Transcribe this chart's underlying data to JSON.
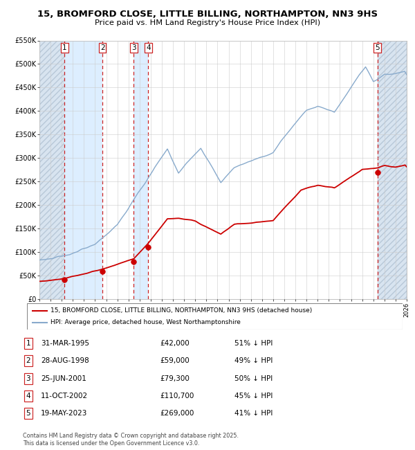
{
  "title_line1": "15, BROMFORD CLOSE, LITTLE BILLING, NORTHAMPTON, NN3 9HS",
  "title_line2": "Price paid vs. HM Land Registry's House Price Index (HPI)",
  "legend_red": "15, BROMFORD CLOSE, LITTLE BILLING, NORTHAMPTON, NN3 9HS (detached house)",
  "legend_blue": "HPI: Average price, detached house, West Northamptonshire",
  "footer": "Contains HM Land Registry data © Crown copyright and database right 2025.\nThis data is licensed under the Open Government Licence v3.0.",
  "sales": [
    {
      "num": 1,
      "date": "31-MAR-1995",
      "date_dec": 1995.25,
      "price": 42000,
      "pct": "51% ↓ HPI"
    },
    {
      "num": 2,
      "date": "28-AUG-1998",
      "date_dec": 1998.66,
      "price": 59000,
      "pct": "49% ↓ HPI"
    },
    {
      "num": 3,
      "date": "25-JUN-2001",
      "date_dec": 2001.48,
      "price": 79300,
      "pct": "50% ↓ HPI"
    },
    {
      "num": 4,
      "date": "11-OCT-2002",
      "date_dec": 2002.78,
      "price": 110700,
      "pct": "45% ↓ HPI"
    },
    {
      "num": 5,
      "date": "19-MAY-2023",
      "date_dec": 2023.38,
      "price": 269000,
      "pct": "41% ↓ HPI"
    }
  ],
  "ylim": [
    0,
    550000
  ],
  "xlim_start": 1993.0,
  "xlim_end": 2026.0,
  "yticks": [
    0,
    50000,
    100000,
    150000,
    200000,
    250000,
    300000,
    350000,
    400000,
    450000,
    500000,
    550000
  ],
  "ytick_labels": [
    "£0",
    "£50K",
    "£100K",
    "£150K",
    "£200K",
    "£250K",
    "£300K",
    "£350K",
    "£400K",
    "£450K",
    "£500K",
    "£550K"
  ],
  "red_color": "#cc0000",
  "blue_color": "#88aacc",
  "grid_color": "#cccccc",
  "dashed_red": "#cc2222",
  "hatch_bg": "#d8e4f0",
  "span_blue": "#ddeeff",
  "span_white": "#ffffff"
}
